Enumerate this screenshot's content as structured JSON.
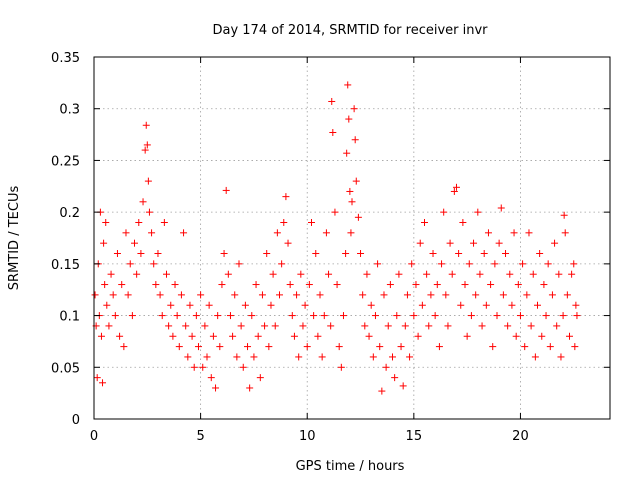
{
  "chart_data": {
    "type": "scatter",
    "title": "Day 174 of 2014, SRMTID for receiver invr",
    "xlabel": "GPS time / hours",
    "ylabel": "SRMTID / TECUs",
    "xlim": [
      0,
      24.2
    ],
    "ylim": [
      0,
      0.35
    ],
    "x_ticks": [
      0,
      5,
      10,
      15,
      20
    ],
    "x_tick_labels": [
      "0",
      "5",
      "10",
      "15",
      "20"
    ],
    "y_ticks": [
      0,
      0.05,
      0.1,
      0.15,
      0.2,
      0.25,
      0.3,
      0.35
    ],
    "y_tick_labels": [
      "0",
      "0.05",
      "0.1",
      "0.15",
      "0.2",
      "0.25",
      "0.3",
      "0.35"
    ],
    "grid": true,
    "legend": "none",
    "marker": "+",
    "marker_color": "#ff0000",
    "series": [
      {
        "points": [
          [
            0.05,
            0.12
          ],
          [
            0.1,
            0.09
          ],
          [
            0.15,
            0.04
          ],
          [
            0.2,
            0.15
          ],
          [
            0.25,
            0.1
          ],
          [
            0.3,
            0.2
          ],
          [
            0.35,
            0.08
          ],
          [
            0.4,
            0.035
          ],
          [
            0.45,
            0.17
          ],
          [
            0.5,
            0.13
          ],
          [
            0.55,
            0.19
          ],
          [
            0.6,
            0.11
          ],
          [
            0.7,
            0.09
          ],
          [
            0.8,
            0.14
          ],
          [
            0.9,
            0.12
          ],
          [
            1.0,
            0.1
          ],
          [
            1.1,
            0.16
          ],
          [
            1.2,
            0.08
          ],
          [
            1.3,
            0.13
          ],
          [
            1.4,
            0.07
          ],
          [
            1.5,
            0.18
          ],
          [
            1.6,
            0.12
          ],
          [
            1.7,
            0.15
          ],
          [
            1.8,
            0.1
          ],
          [
            1.9,
            0.17
          ],
          [
            2.0,
            0.14
          ],
          [
            2.1,
            0.19
          ],
          [
            2.2,
            0.16
          ],
          [
            2.3,
            0.21
          ],
          [
            2.4,
            0.26
          ],
          [
            2.45,
            0.284
          ],
          [
            2.5,
            0.265
          ],
          [
            2.55,
            0.23
          ],
          [
            2.6,
            0.2
          ],
          [
            2.7,
            0.18
          ],
          [
            2.8,
            0.15
          ],
          [
            2.9,
            0.13
          ],
          [
            3.0,
            0.16
          ],
          [
            3.1,
            0.12
          ],
          [
            3.2,
            0.1
          ],
          [
            3.3,
            0.19
          ],
          [
            3.4,
            0.14
          ],
          [
            3.5,
            0.09
          ],
          [
            3.6,
            0.11
          ],
          [
            3.7,
            0.08
          ],
          [
            3.8,
            0.13
          ],
          [
            3.9,
            0.1
          ],
          [
            4.0,
            0.07
          ],
          [
            4.1,
            0.12
          ],
          [
            4.2,
            0.18
          ],
          [
            4.3,
            0.09
          ],
          [
            4.4,
            0.06
          ],
          [
            4.5,
            0.11
          ],
          [
            4.6,
            0.08
          ],
          [
            4.7,
            0.05
          ],
          [
            4.8,
            0.1
          ],
          [
            4.9,
            0.07
          ],
          [
            5.0,
            0.12
          ],
          [
            5.1,
            0.05
          ],
          [
            5.2,
            0.09
          ],
          [
            5.3,
            0.06
          ],
          [
            5.4,
            0.11
          ],
          [
            5.5,
            0.04
          ],
          [
            5.6,
            0.08
          ],
          [
            5.7,
            0.03
          ],
          [
            5.8,
            0.1
          ],
          [
            5.9,
            0.07
          ],
          [
            6.0,
            0.13
          ],
          [
            6.1,
            0.16
          ],
          [
            6.2,
            0.221
          ],
          [
            6.3,
            0.14
          ],
          [
            6.4,
            0.1
          ],
          [
            6.5,
            0.08
          ],
          [
            6.6,
            0.12
          ],
          [
            6.7,
            0.06
          ],
          [
            6.8,
            0.15
          ],
          [
            6.9,
            0.09
          ],
          [
            7.0,
            0.05
          ],
          [
            7.1,
            0.11
          ],
          [
            7.2,
            0.07
          ],
          [
            7.3,
            0.03
          ],
          [
            7.4,
            0.1
          ],
          [
            7.5,
            0.06
          ],
          [
            7.6,
            0.13
          ],
          [
            7.7,
            0.08
          ],
          [
            7.8,
            0.04
          ],
          [
            7.9,
            0.12
          ],
          [
            8.0,
            0.09
          ],
          [
            8.1,
            0.16
          ],
          [
            8.2,
            0.07
          ],
          [
            8.3,
            0.11
          ],
          [
            8.4,
            0.14
          ],
          [
            8.5,
            0.09
          ],
          [
            8.6,
            0.18
          ],
          [
            8.7,
            0.12
          ],
          [
            8.8,
            0.15
          ],
          [
            8.9,
            0.19
          ],
          [
            9.0,
            0.215
          ],
          [
            9.1,
            0.17
          ],
          [
            9.2,
            0.13
          ],
          [
            9.3,
            0.1
          ],
          [
            9.4,
            0.08
          ],
          [
            9.5,
            0.12
          ],
          [
            9.6,
            0.06
          ],
          [
            9.7,
            0.14
          ],
          [
            9.8,
            0.09
          ],
          [
            9.9,
            0.11
          ],
          [
            10.0,
            0.07
          ],
          [
            10.1,
            0.13
          ],
          [
            10.2,
            0.19
          ],
          [
            10.3,
            0.1
          ],
          [
            10.4,
            0.16
          ],
          [
            10.5,
            0.08
          ],
          [
            10.6,
            0.12
          ],
          [
            10.7,
            0.06
          ],
          [
            10.8,
            0.1
          ],
          [
            10.9,
            0.18
          ],
          [
            11.0,
            0.14
          ],
          [
            11.1,
            0.09
          ],
          [
            11.15,
            0.307
          ],
          [
            11.2,
            0.277
          ],
          [
            11.3,
            0.2
          ],
          [
            11.4,
            0.13
          ],
          [
            11.5,
            0.07
          ],
          [
            11.6,
            0.05
          ],
          [
            11.7,
            0.1
          ],
          [
            11.8,
            0.16
          ],
          [
            11.85,
            0.257
          ],
          [
            11.9,
            0.323
          ],
          [
            11.95,
            0.29
          ],
          [
            12.0,
            0.22
          ],
          [
            12.05,
            0.18
          ],
          [
            12.1,
            0.21
          ],
          [
            12.2,
            0.3
          ],
          [
            12.25,
            0.27
          ],
          [
            12.3,
            0.23
          ],
          [
            12.4,
            0.195
          ],
          [
            12.5,
            0.16
          ],
          [
            12.6,
            0.12
          ],
          [
            12.7,
            0.09
          ],
          [
            12.8,
            0.14
          ],
          [
            12.9,
            0.08
          ],
          [
            13.0,
            0.11
          ],
          [
            13.1,
            0.06
          ],
          [
            13.2,
            0.1
          ],
          [
            13.3,
            0.15
          ],
          [
            13.4,
            0.07
          ],
          [
            13.5,
            0.027
          ],
          [
            13.6,
            0.12
          ],
          [
            13.7,
            0.05
          ],
          [
            13.8,
            0.09
          ],
          [
            13.9,
            0.13
          ],
          [
            14.0,
            0.06
          ],
          [
            14.1,
            0.04
          ],
          [
            14.2,
            0.1
          ],
          [
            14.3,
            0.14
          ],
          [
            14.4,
            0.07
          ],
          [
            14.5,
            0.032
          ],
          [
            14.6,
            0.09
          ],
          [
            14.7,
            0.12
          ],
          [
            14.8,
            0.06
          ],
          [
            14.9,
            0.15
          ],
          [
            15.0,
            0.1
          ],
          [
            15.1,
            0.13
          ],
          [
            15.2,
            0.08
          ],
          [
            15.3,
            0.17
          ],
          [
            15.4,
            0.11
          ],
          [
            15.5,
            0.19
          ],
          [
            15.6,
            0.14
          ],
          [
            15.7,
            0.09
          ],
          [
            15.8,
            0.12
          ],
          [
            15.9,
            0.16
          ],
          [
            16.0,
            0.1
          ],
          [
            16.1,
            0.13
          ],
          [
            16.2,
            0.07
          ],
          [
            16.3,
            0.15
          ],
          [
            16.4,
            0.2
          ],
          [
            16.5,
            0.12
          ],
          [
            16.6,
            0.09
          ],
          [
            16.7,
            0.17
          ],
          [
            16.8,
            0.14
          ],
          [
            16.9,
            0.22
          ],
          [
            17.0,
            0.224
          ],
          [
            17.1,
            0.16
          ],
          [
            17.2,
            0.11
          ],
          [
            17.3,
            0.19
          ],
          [
            17.4,
            0.13
          ],
          [
            17.5,
            0.08
          ],
          [
            17.6,
            0.15
          ],
          [
            17.7,
            0.1
          ],
          [
            17.8,
            0.17
          ],
          [
            17.9,
            0.12
          ],
          [
            18.0,
            0.2
          ],
          [
            18.1,
            0.14
          ],
          [
            18.2,
            0.09
          ],
          [
            18.3,
            0.16
          ],
          [
            18.4,
            0.11
          ],
          [
            18.5,
            0.18
          ],
          [
            18.6,
            0.13
          ],
          [
            18.7,
            0.07
          ],
          [
            18.8,
            0.15
          ],
          [
            18.9,
            0.1
          ],
          [
            19.0,
            0.17
          ],
          [
            19.1,
            0.204
          ],
          [
            19.2,
            0.12
          ],
          [
            19.3,
            0.16
          ],
          [
            19.4,
            0.09
          ],
          [
            19.5,
            0.14
          ],
          [
            19.6,
            0.11
          ],
          [
            19.7,
            0.18
          ],
          [
            19.8,
            0.08
          ],
          [
            19.9,
            0.13
          ],
          [
            20.0,
            0.1
          ],
          [
            20.1,
            0.15
          ],
          [
            20.2,
            0.07
          ],
          [
            20.3,
            0.12
          ],
          [
            20.4,
            0.18
          ],
          [
            20.5,
            0.09
          ],
          [
            20.6,
            0.14
          ],
          [
            20.7,
            0.06
          ],
          [
            20.8,
            0.11
          ],
          [
            20.9,
            0.16
          ],
          [
            21.0,
            0.08
          ],
          [
            21.1,
            0.13
          ],
          [
            21.2,
            0.1
          ],
          [
            21.3,
            0.15
          ],
          [
            21.4,
            0.07
          ],
          [
            21.5,
            0.12
          ],
          [
            21.6,
            0.17
          ],
          [
            21.7,
            0.09
          ],
          [
            21.8,
            0.14
          ],
          [
            21.9,
            0.06
          ],
          [
            22.0,
            0.1
          ],
          [
            22.05,
            0.197
          ],
          [
            22.1,
            0.18
          ],
          [
            22.2,
            0.12
          ],
          [
            22.3,
            0.08
          ],
          [
            22.4,
            0.14
          ],
          [
            22.5,
            0.15
          ],
          [
            22.55,
            0.07
          ],
          [
            22.6,
            0.11
          ],
          [
            22.65,
            0.1
          ]
        ]
      }
    ]
  }
}
